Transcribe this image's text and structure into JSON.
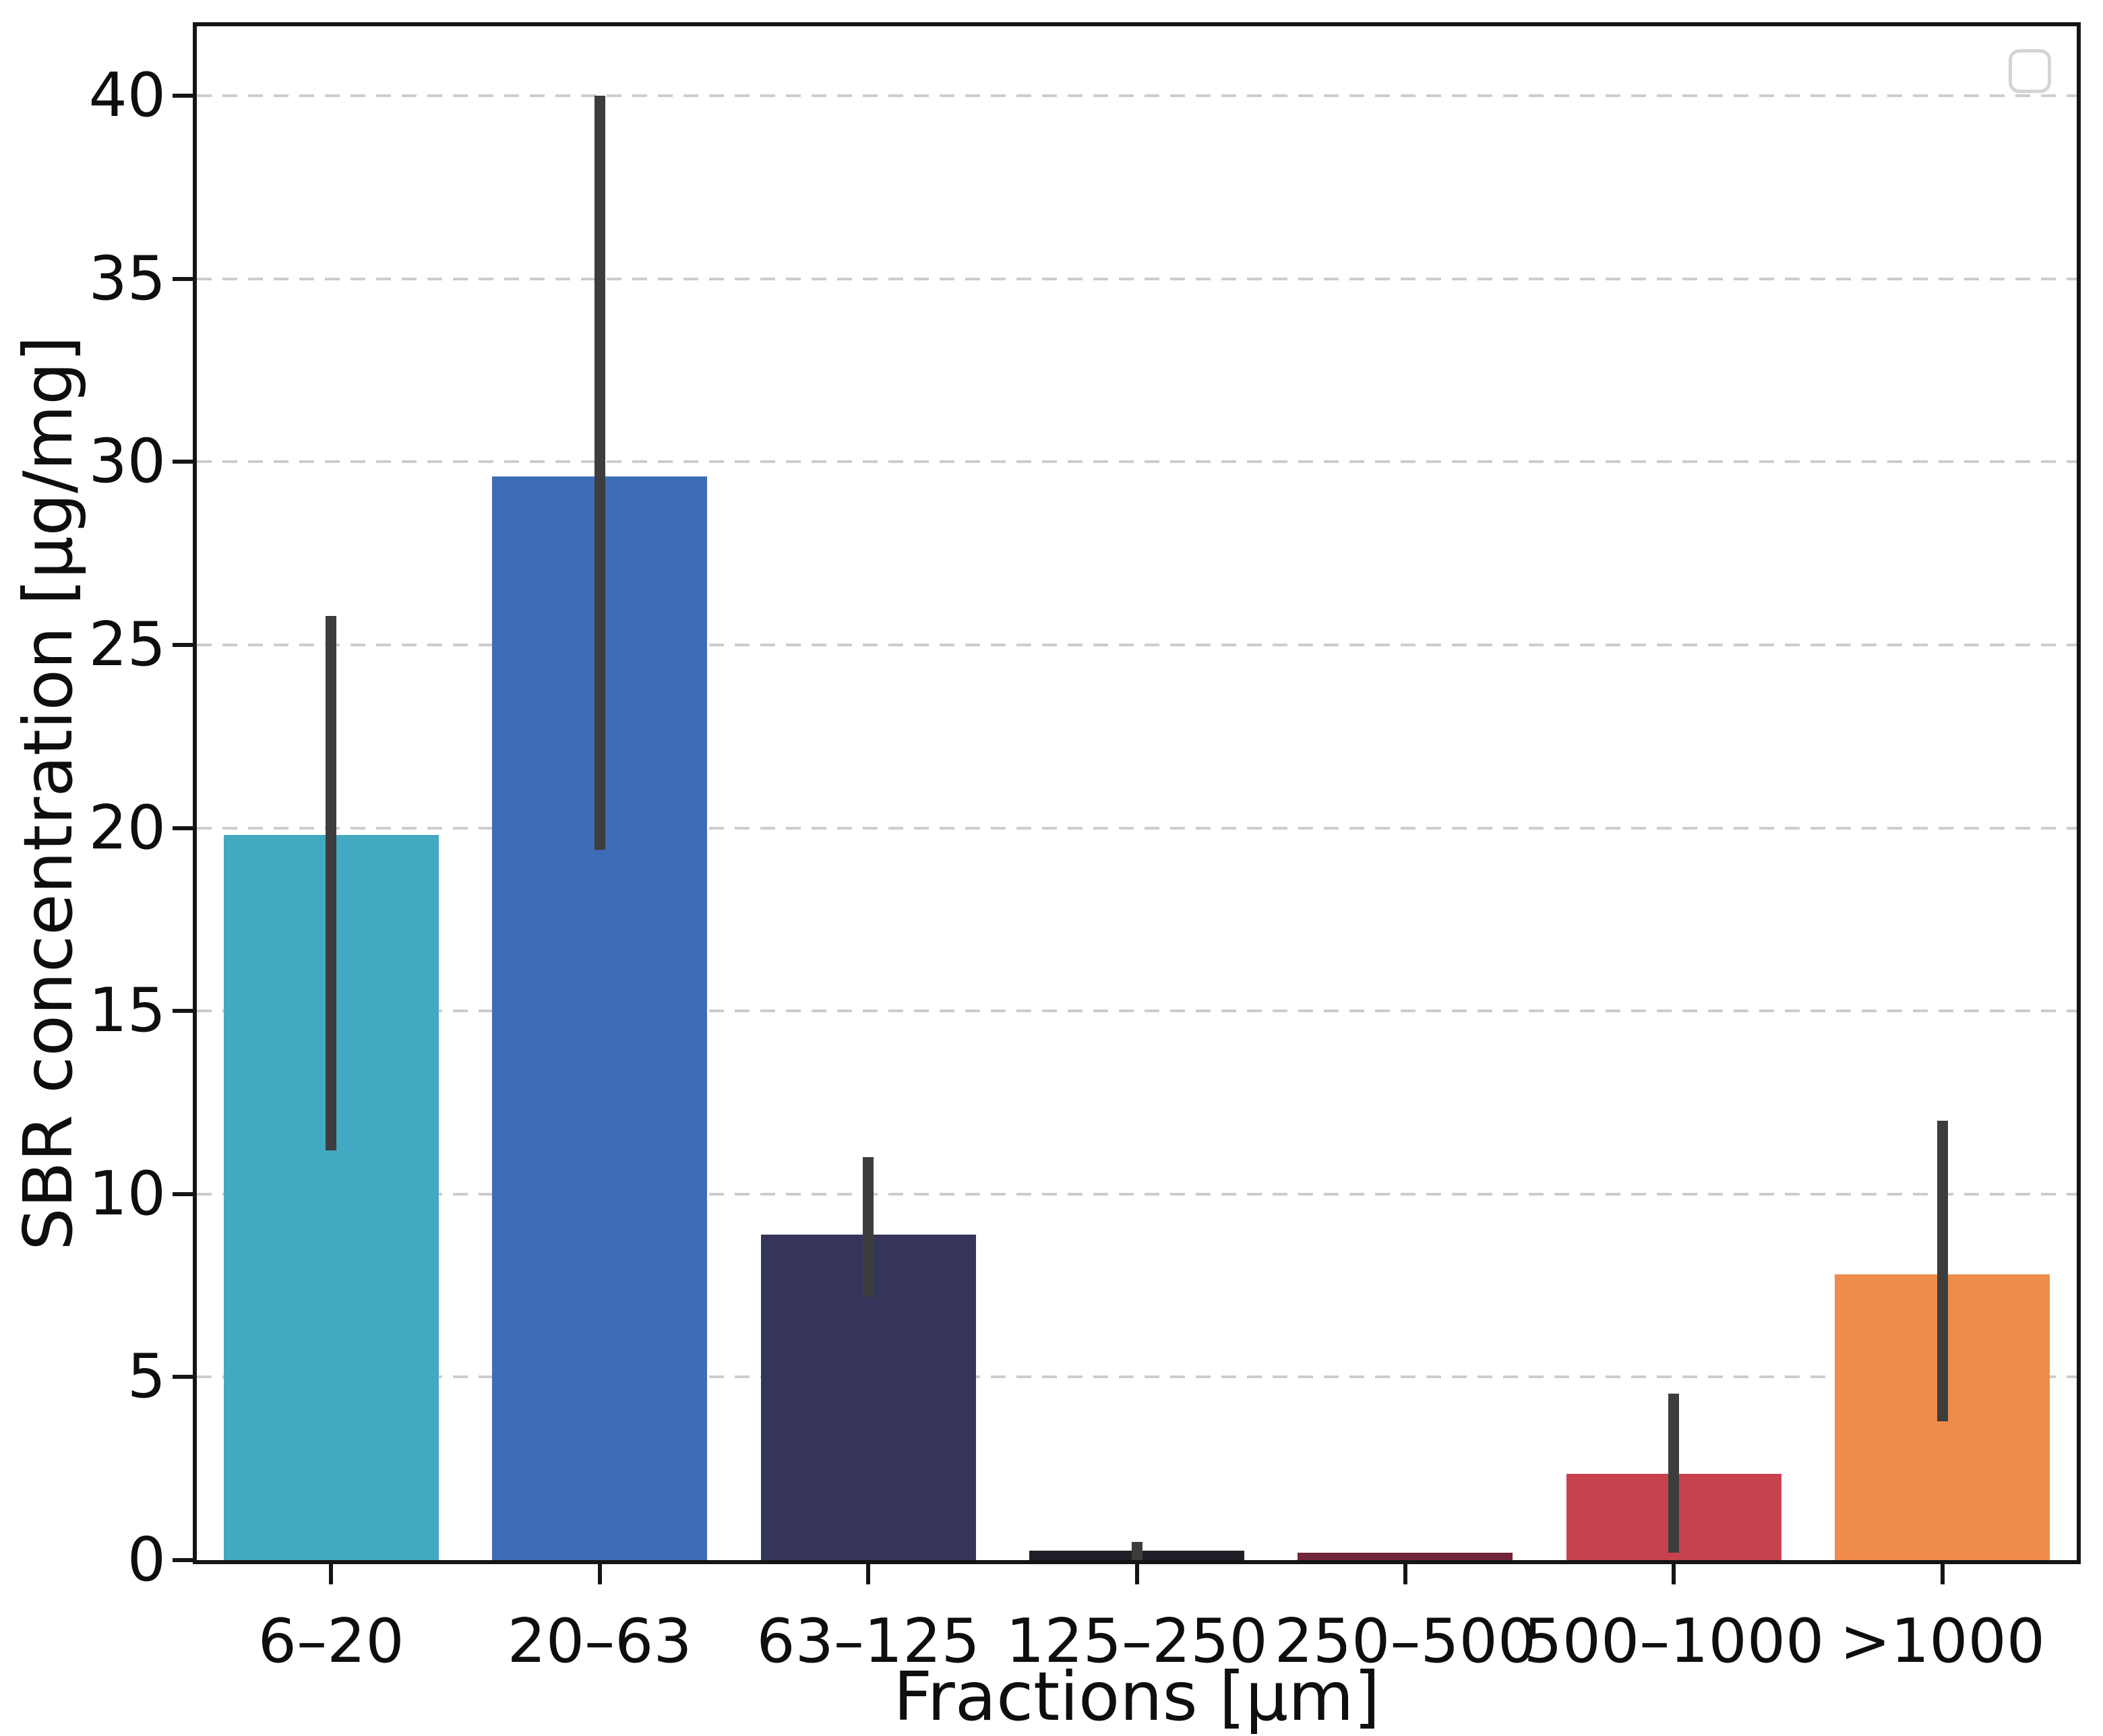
{
  "figure": {
    "background_color": "#ffffff",
    "title": "",
    "legend": {
      "visible": true,
      "entries": [],
      "position": "top-right",
      "style": "empty rounded frame",
      "border_color": "#d4d4d4"
    }
  },
  "chart_data": {
    "type": "bar",
    "title": "",
    "xlabel": "Fractions [µm]",
    "ylabel": "SBR concentration [µg/mg]",
    "categories": [
      "6–20",
      "20–63",
      "63–125",
      "125–250",
      "250–500",
      "500–1000",
      ">1000"
    ],
    "values": [
      19.8,
      29.6,
      8.9,
      0.25,
      0.2,
      2.35,
      7.8
    ],
    "error_low": [
      11.2,
      19.4,
      7.2,
      0.0,
      null,
      0.2,
      3.8
    ],
    "error_high": [
      25.8,
      40.0,
      11.0,
      0.5,
      null,
      4.55,
      12.0
    ],
    "bar_colors": [
      "#41A9C1",
      "#3E6DB8",
      "#35355B",
      "#1F1F27",
      "#73263A",
      "#C8414F",
      "#F08C49"
    ],
    "error_bar_color": "#3d3d3d",
    "y_ticks": [
      0,
      5,
      10,
      15,
      20,
      25,
      30,
      35,
      40
    ],
    "y_tick_labels": [
      "0",
      "5",
      "10",
      "15",
      "20",
      "25",
      "30",
      "35",
      "40"
    ],
    "ylim": [
      0,
      41.9
    ],
    "grid": "horizontal dashed",
    "grid_color": "#cccccc",
    "axis_color": "#151515",
    "legend_position": "upper right (empty)"
  }
}
